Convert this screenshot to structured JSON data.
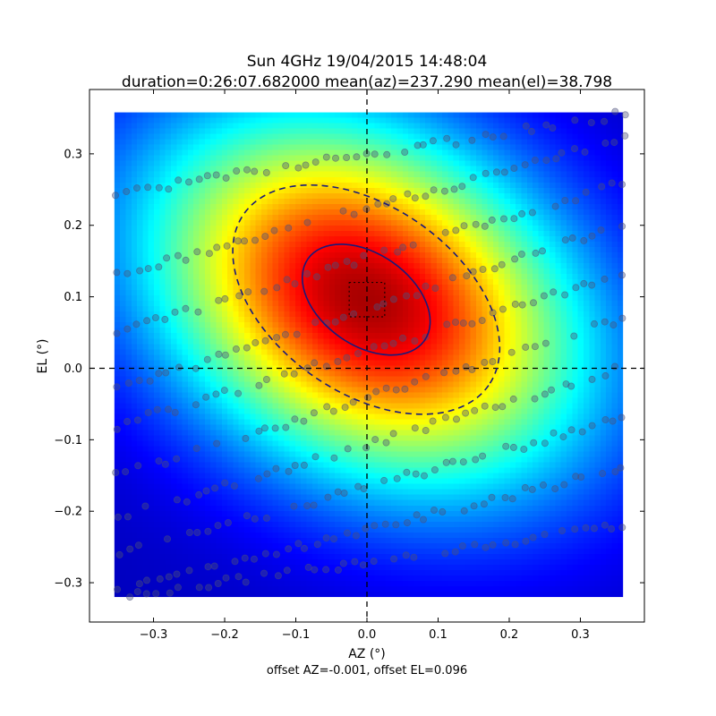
{
  "chart_data": {
    "type": "heatmap",
    "title": "Sun 4GHz 19/04/2015 14:48:04",
    "subtitle": "duration=0:26:07.682000 mean(az)=237.290 mean(el)=38.798",
    "xlabel": "AZ (°)",
    "ylabel": "EL (°)",
    "footnote": "offset AZ=-0.001, offset EL=0.096",
    "xlim": [
      -0.39,
      0.39
    ],
    "ylim": [
      -0.355,
      0.39
    ],
    "xticks": [
      -0.3,
      -0.2,
      -0.1,
      0.0,
      0.1,
      0.2,
      0.3
    ],
    "xtick_labels": [
      "−0.3",
      "−0.2",
      "−0.1",
      "0.0",
      "0.1",
      "0.2",
      "0.3"
    ],
    "yticks": [
      -0.3,
      -0.2,
      -0.1,
      0.0,
      0.1,
      0.2,
      0.3
    ],
    "ytick_labels": [
      "−0.3",
      "−0.2",
      "−0.1",
      "0.0",
      "0.1",
      "0.2",
      "0.3"
    ],
    "grid": false,
    "colormap": "jet",
    "heatmap_extent": {
      "x": [
        -0.355,
        0.36
      ],
      "y": [
        -0.32,
        0.358
      ]
    },
    "beam_model": {
      "center": [
        -0.001,
        0.096
      ],
      "semi_major": 0.33,
      "semi_minor": 0.235,
      "rotation_deg": -30
    },
    "fit_contours": [
      {
        "level": "inner",
        "style": "solid",
        "center": [
          -0.001,
          0.096
        ],
        "semi_major": 0.1,
        "semi_minor": 0.064,
        "rotation_deg": -35
      },
      {
        "level": "outer",
        "style": "dashed",
        "center": [
          -0.001,
          0.096
        ],
        "semi_major": 0.21,
        "semi_minor": 0.13,
        "rotation_deg": -35
      }
    ],
    "offset_box": {
      "az": [
        -0.025,
        0.025
      ],
      "el": [
        0.072,
        0.12
      ]
    },
    "reference_lines": {
      "az": 0.0,
      "el": 0.0
    },
    "scan_rows": [
      {
        "az_start": -0.35,
        "az_end": 0.36,
        "el_start": 0.245,
        "el_end": 0.355
      },
      {
        "az_start": -0.35,
        "az_end": 0.36,
        "el_start": 0.13,
        "el_end": 0.32
      },
      {
        "az_start": -0.35,
        "az_end": 0.36,
        "el_start": 0.05,
        "el_end": 0.26
      },
      {
        "az_start": -0.35,
        "az_end": 0.36,
        "el_start": -0.03,
        "el_end": 0.2
      },
      {
        "az_start": -0.35,
        "az_end": 0.36,
        "el_start": -0.08,
        "el_end": 0.13
      },
      {
        "az_start": -0.35,
        "az_end": 0.36,
        "el_start": -0.15,
        "el_end": 0.07
      },
      {
        "az_start": -0.35,
        "az_end": 0.36,
        "el_start": -0.21,
        "el_end": 0.0
      },
      {
        "az_start": -0.35,
        "az_end": 0.36,
        "el_start": -0.26,
        "el_end": -0.07
      },
      {
        "az_start": -0.35,
        "az_end": 0.36,
        "el_start": -0.31,
        "el_end": -0.14
      },
      {
        "az_start": -0.35,
        "az_end": 0.36,
        "el_start": -0.32,
        "el_end": -0.22
      }
    ],
    "colors": {
      "contour": "#1a1a7a",
      "samples_fill": "#4b4f7a",
      "reference_line": "#000000"
    }
  }
}
